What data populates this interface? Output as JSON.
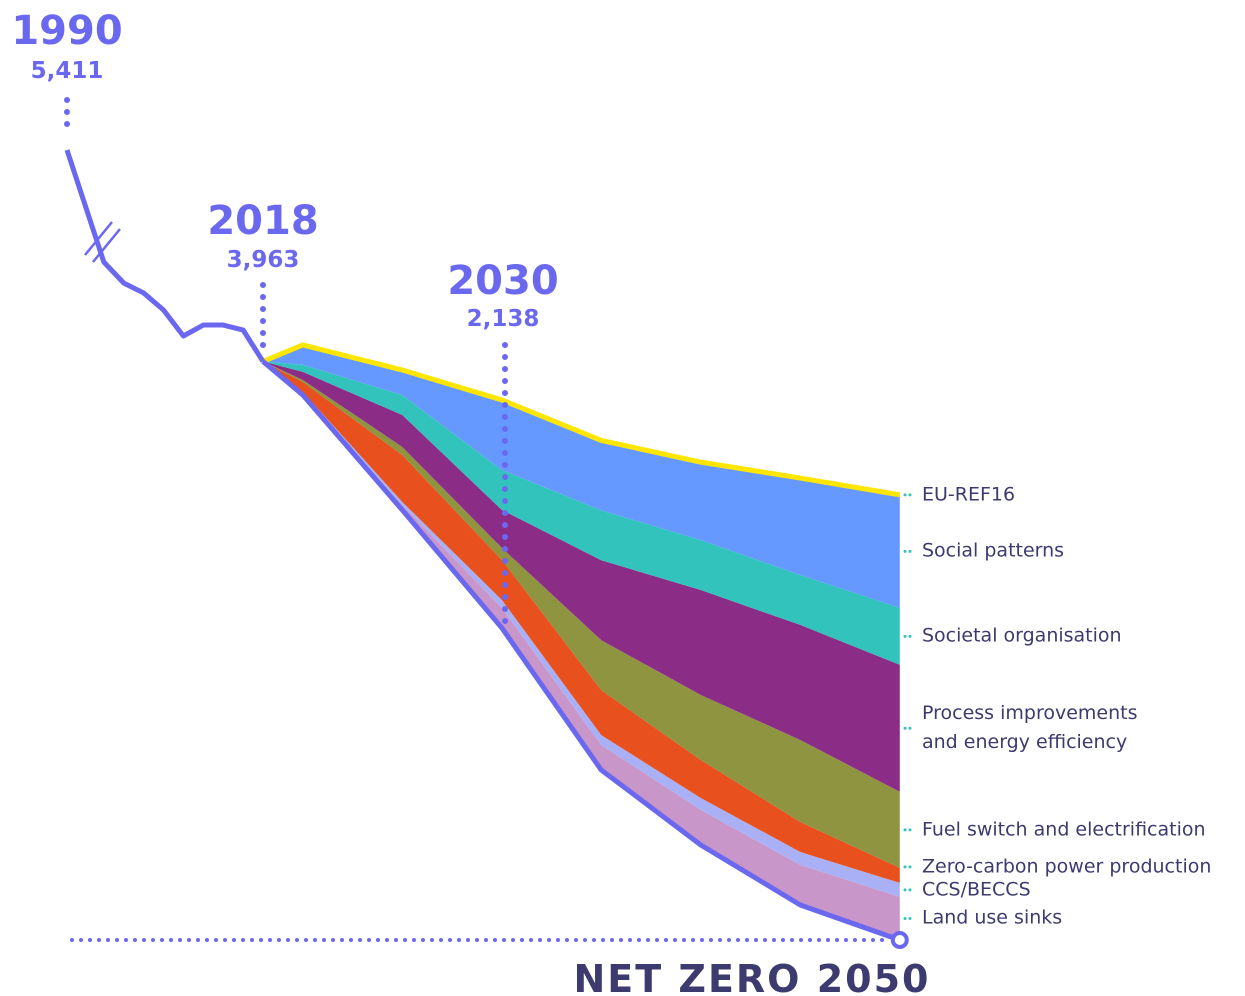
{
  "chart_data": {
    "type": "stacked_area",
    "x": [
      2018,
      2020,
      2025,
      2030,
      2035,
      2040,
      2045,
      2050
    ],
    "net": {
      "color": "#6b68f0",
      "values": [
        3963,
        3733,
        2945,
        2138,
        1164,
        651,
        240,
        0
      ],
      "value_labels": [
        null,
        null,
        null,
        "2,138",
        null,
        null,
        null,
        null
      ]
    },
    "history": {
      "color": "#6b68f0",
      "x": [
        1990,
        2010,
        2011,
        2012,
        2013,
        2014,
        2015,
        2016,
        2017,
        2018
      ],
      "values": [
        5411,
        4644,
        4500,
        4432,
        4315,
        4137,
        4212,
        4212,
        4178,
        3963
      ],
      "value_labels": [
        "5,411",
        null,
        null,
        null,
        null,
        null,
        null,
        null,
        null,
        "3,963"
      ]
    },
    "reference_line": {
      "name": "EU-REF16",
      "color": "#ffe600"
    },
    "series": [
      {
        "name": "Land use sinks",
        "color": "#c896c8",
        "values": [
          0,
          14,
          34,
          137,
          171,
          240,
          274,
          295
        ]
      },
      {
        "name": "CCS/BECCS",
        "color": "#aab0f5",
        "values": [
          0,
          7,
          21,
          55,
          68,
          82,
          89,
          96
        ]
      },
      {
        "name": "Zero-carbon power production",
        "color": "#e8501e",
        "values": [
          0,
          68,
          322,
          274,
          308,
          260,
          205,
          103
        ]
      },
      {
        "name": "Fuel switch and electrification",
        "color": "#8f9440",
        "values": [
          0,
          14,
          55,
          82,
          342,
          445,
          562,
          521
        ]
      },
      {
        "name": "Process improvements\nand energy efficiency",
        "color": "#8b2d87",
        "values": [
          0,
          55,
          219,
          260,
          548,
          719,
          788,
          870
        ]
      },
      {
        "name": "Societal organisation",
        "color": "#33c3bd",
        "values": [
          0,
          48,
          137,
          274,
          342,
          342,
          342,
          390
        ]
      },
      {
        "name": "Social patterns",
        "color": "#6699ff",
        "values": [
          0,
          137,
          171,
          479,
          479,
          534,
          664,
          774
        ]
      }
    ],
    "annotations": [
      "NET ZERO 2050"
    ]
  }
}
